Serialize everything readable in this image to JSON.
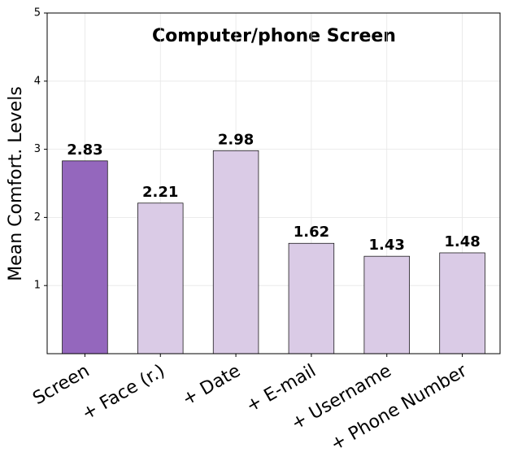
{
  "chart_data": {
    "type": "bar",
    "title": "Computer/phone Screen",
    "y_label": "Mean Comfort. Levels",
    "categories": [
      "Screen",
      "+ Face (r.)",
      "+ Date",
      "+ E-mail",
      "+ Username",
      "+ Phone Number"
    ],
    "values": [
      2.83,
      2.21,
      2.98,
      1.62,
      1.43,
      1.48
    ],
    "colors": [
      "#9467bd",
      "#dacbe6",
      "#dacbe6",
      "#dacbe6",
      "#dacbe6",
      "#dacbe6"
    ],
    "ylim": [
      0,
      5
    ],
    "yticks": [
      1,
      2,
      3,
      4,
      5
    ],
    "grid": true
  }
}
